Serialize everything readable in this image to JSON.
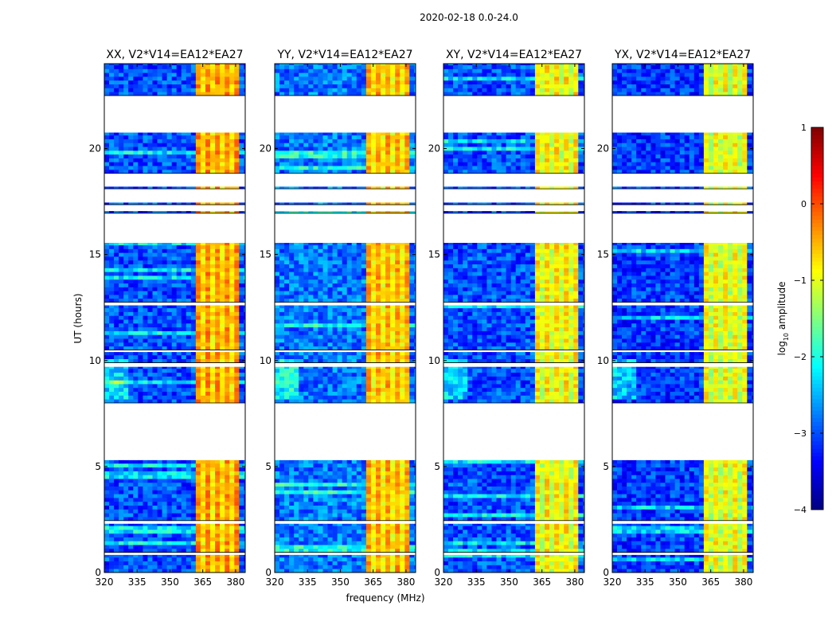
{
  "chart_data": {
    "type": "heatmap",
    "title": "2020-02-18 0.0-24.0",
    "xlabel": "frequency (MHz)",
    "ylabel": "UT (hours)",
    "xlim": [
      320,
      384.4
    ],
    "ylim": [
      0,
      24
    ],
    "xticks": [
      320,
      335,
      350,
      365,
      380
    ],
    "yticks": [
      0,
      5,
      10,
      15,
      20
    ],
    "panels": [
      {
        "title": "XX, V2*V14=EA12*EA27",
        "band_level": -0.4,
        "bg_level": -3.0
      },
      {
        "title": "YY, V2*V14=EA12*EA27",
        "band_level": -0.5,
        "bg_level": -2.8
      },
      {
        "title": "XY, V2*V14=EA12*EA27",
        "band_level": -0.8,
        "bg_level": -3.0
      },
      {
        "title": "YX, V2*V14=EA12*EA27",
        "band_level": -0.9,
        "bg_level": -3.1
      }
    ],
    "data_segments_hours": [
      [
        0,
        0.83
      ],
      [
        0.95,
        2.3
      ],
      [
        2.45,
        5.3
      ],
      [
        8.0,
        9.7
      ],
      [
        9.9,
        10.4
      ],
      [
        10.5,
        12.6
      ],
      [
        12.75,
        15.55
      ],
      [
        16.95,
        17.05
      ],
      [
        17.35,
        17.45
      ],
      [
        18.1,
        18.2
      ],
      [
        18.83,
        20.75
      ],
      [
        22.5,
        24
      ]
    ],
    "band_mhz": [
      361,
      380.5
    ],
    "colorbar": {
      "label_main": "log",
      "label_sub": "10",
      "label_rest": " amplitude",
      "range": [
        -4,
        1
      ],
      "ticks": [
        1,
        0,
        -1,
        -2,
        -3,
        -4
      ],
      "tick_labels": [
        "1",
        "0",
        "−1",
        "−2",
        "−3",
        "−4"
      ],
      "colormap": "jet"
    }
  }
}
